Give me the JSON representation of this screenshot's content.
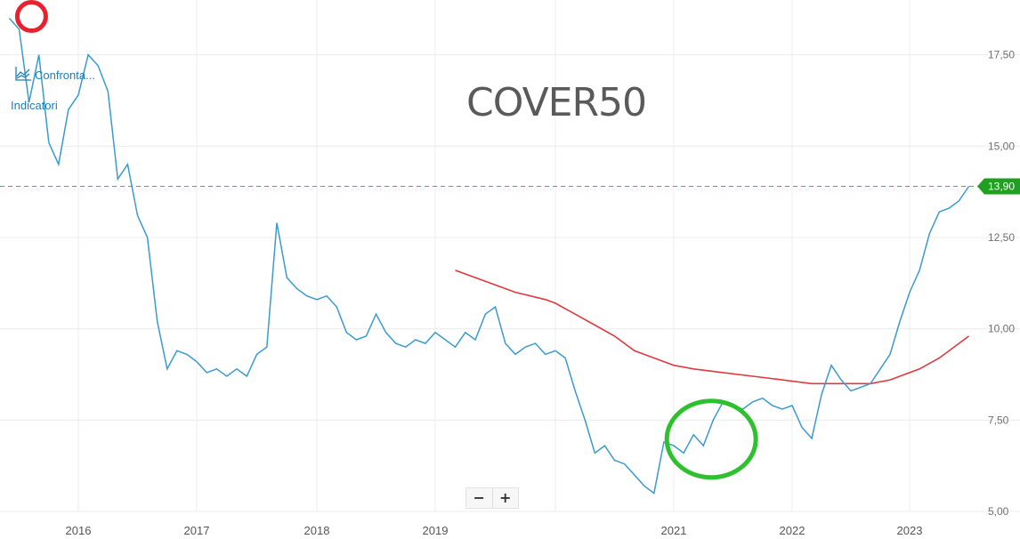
{
  "watermark": "COVER50",
  "toolbar": {
    "compare_label": "Confronta...",
    "indicators_label": "Indicatori",
    "zoom_out": "−",
    "zoom_in": "+"
  },
  "colors": {
    "price": "#3a9bcf",
    "moving_average": "#e0393e",
    "reference": "#3cbf3c",
    "annotation_red": "#e8212e",
    "annotation_green": "#2ec12e",
    "badge": "#1fa01f"
  },
  "chart_data": {
    "type": "line",
    "title": "",
    "xlabel": "",
    "ylabel": "",
    "ylim": [
      5.0,
      19.0
    ],
    "y_ticks": [
      "5,00",
      "7,50",
      "10,00",
      "12,50",
      "15,00",
      "17,50"
    ],
    "x_ticks": [
      "2016",
      "2017",
      "2018",
      "2019",
      "2021",
      "2022",
      "2023"
    ],
    "grid": true,
    "last_value_label": "13,90",
    "reference_line": 13.9,
    "series": [
      {
        "role": "price",
        "x": [
          "2015-06",
          "2015-07",
          "2015-08",
          "2015-09",
          "2015-10",
          "2015-11",
          "2015-12",
          "2016-01",
          "2016-02",
          "2016-03",
          "2016-04",
          "2016-05",
          "2016-06",
          "2016-07",
          "2016-08",
          "2016-09",
          "2016-10",
          "2016-11",
          "2016-12",
          "2017-01",
          "2017-02",
          "2017-03",
          "2017-04",
          "2017-05",
          "2017-06",
          "2017-07",
          "2017-08",
          "2017-09",
          "2017-10",
          "2017-11",
          "2017-12",
          "2018-01",
          "2018-02",
          "2018-03",
          "2018-04",
          "2018-05",
          "2018-06",
          "2018-07",
          "2018-08",
          "2018-09",
          "2018-10",
          "2018-11",
          "2018-12",
          "2019-01",
          "2019-02",
          "2019-03",
          "2019-04",
          "2019-05",
          "2019-06",
          "2019-07",
          "2019-08",
          "2019-09",
          "2019-10",
          "2019-11",
          "2019-12",
          "2020-01",
          "2020-02",
          "2020-03",
          "2020-04",
          "2020-05",
          "2020-06",
          "2020-07",
          "2020-08",
          "2020-09",
          "2020-10",
          "2020-11",
          "2020-12",
          "2021-01",
          "2021-02",
          "2021-03",
          "2021-04",
          "2021-05",
          "2021-06",
          "2021-07",
          "2021-08",
          "2021-09",
          "2021-10",
          "2021-11",
          "2021-12",
          "2022-01",
          "2022-02",
          "2022-03",
          "2022-04",
          "2022-05",
          "2022-06",
          "2022-07",
          "2022-08",
          "2022-09",
          "2022-10",
          "2022-11",
          "2022-12",
          "2023-01",
          "2023-02",
          "2023-03",
          "2023-04",
          "2023-05",
          "2023-06",
          "2023-07"
        ],
        "values": [
          18.5,
          18.2,
          16.2,
          17.5,
          15.1,
          14.5,
          16.0,
          16.4,
          17.5,
          17.2,
          16.5,
          14.1,
          14.5,
          13.1,
          12.5,
          10.2,
          8.9,
          9.4,
          9.3,
          9.1,
          8.8,
          8.9,
          8.7,
          8.9,
          8.7,
          9.3,
          9.5,
          12.9,
          11.4,
          11.1,
          10.9,
          10.8,
          10.9,
          10.6,
          9.9,
          9.7,
          9.8,
          10.4,
          9.9,
          9.6,
          9.5,
          9.7,
          9.6,
          9.9,
          9.7,
          9.5,
          9.9,
          9.7,
          10.4,
          10.6,
          9.6,
          9.3,
          9.5,
          9.6,
          9.3,
          9.4,
          9.2,
          8.3,
          7.5,
          6.6,
          6.8,
          6.4,
          6.3,
          6.0,
          5.7,
          5.5,
          6.9,
          6.8,
          6.6,
          7.1,
          6.8,
          7.5,
          8.0,
          7.9,
          7.8,
          8.0,
          8.1,
          7.9,
          7.8,
          7.9,
          7.3,
          7.0,
          8.2,
          9.0,
          8.6,
          8.3,
          8.4,
          8.5,
          8.9,
          9.3,
          10.2,
          11.0,
          11.6,
          12.6,
          13.2,
          13.3,
          13.5,
          13.9
        ]
      },
      {
        "role": "moving_average",
        "x": [
          "2019-03",
          "2019-04",
          "2019-06",
          "2019-09",
          "2019-12",
          "2020-01",
          "2020-03",
          "2020-05",
          "2020-07",
          "2020-09",
          "2020-11",
          "2021-01",
          "2021-03",
          "2021-06",
          "2021-09",
          "2021-12",
          "2022-03",
          "2022-06",
          "2022-09",
          "2022-11",
          "2022-12",
          "2023-02",
          "2023-04",
          "2023-07"
        ],
        "values": [
          11.6,
          11.5,
          11.3,
          11.0,
          10.8,
          10.7,
          10.4,
          10.1,
          9.8,
          9.4,
          9.2,
          9.0,
          8.9,
          8.8,
          8.7,
          8.6,
          8.5,
          8.5,
          8.5,
          8.6,
          8.7,
          8.9,
          9.2,
          9.8
        ]
      }
    ]
  }
}
